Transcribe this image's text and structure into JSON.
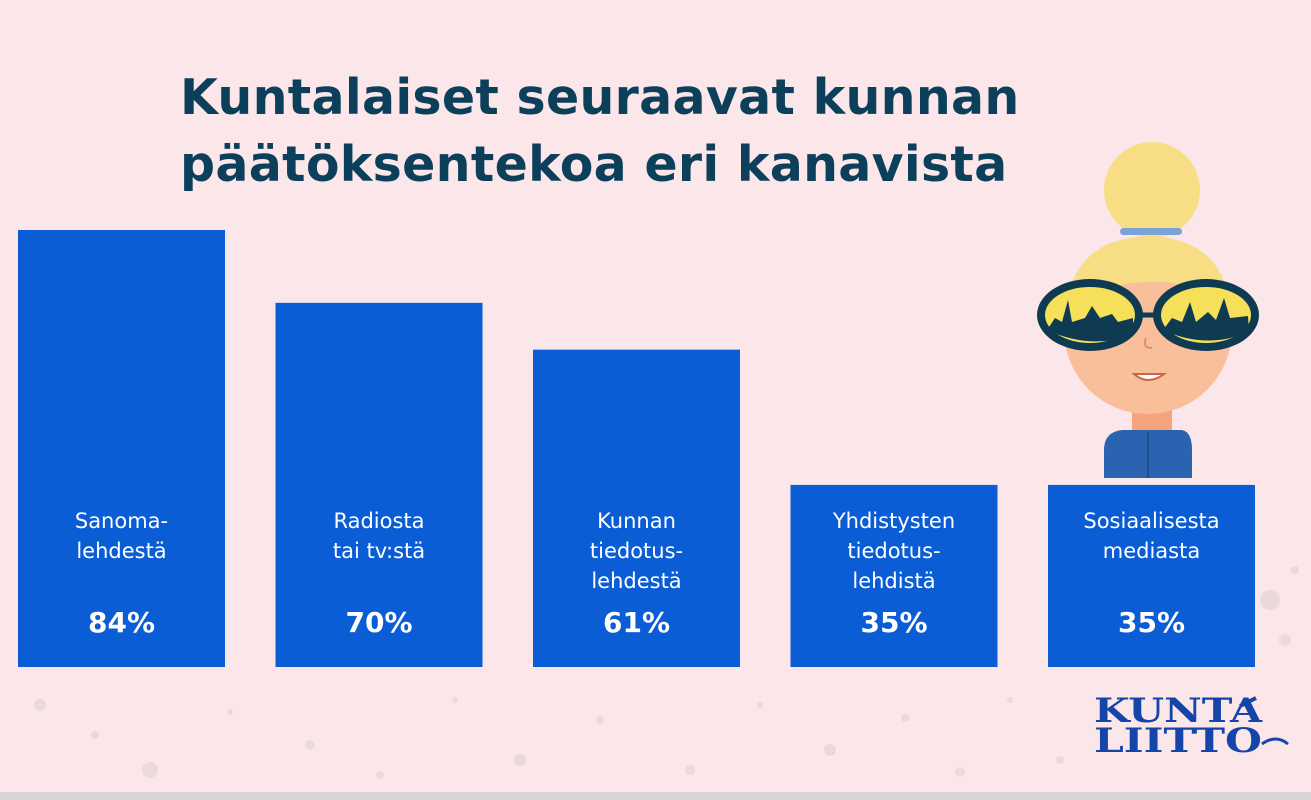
{
  "title": {
    "line1": "Kuntalaiset seuraavat kunnan",
    "line2": "päätöksentekoa eri kanavista"
  },
  "chart_data": {
    "type": "bar",
    "title": "Kuntalaiset seuraavat kunnan päätöksentekoa eri kanavista",
    "categories": [
      [
        "Sanoma-",
        "lehdestä"
      ],
      [
        "Radiosta",
        "tai tv:stä"
      ],
      [
        "Kunnan",
        "tiedotus-",
        "lehdestä"
      ],
      [
        "Yhdistysten",
        "tiedotus-",
        "lehdistä"
      ],
      [
        "Sosiaalisesta",
        "mediasta"
      ]
    ],
    "values": [
      84,
      70,
      61,
      35,
      35
    ],
    "value_labels": [
      "84%",
      "70%",
      "61%",
      "35%",
      "35%"
    ],
    "ylim": [
      0,
      84
    ],
    "bar_color": "#0b5dd6"
  },
  "logo": {
    "line1": "KUNTA",
    "line2": "LIITTO"
  },
  "colors": {
    "background": "#fbe6ea",
    "title": "#0c3f5a",
    "bar": "#0b5dd6",
    "logo": "#1346a8"
  },
  "illustration": {
    "name": "woman-with-sunglasses-illustration"
  }
}
